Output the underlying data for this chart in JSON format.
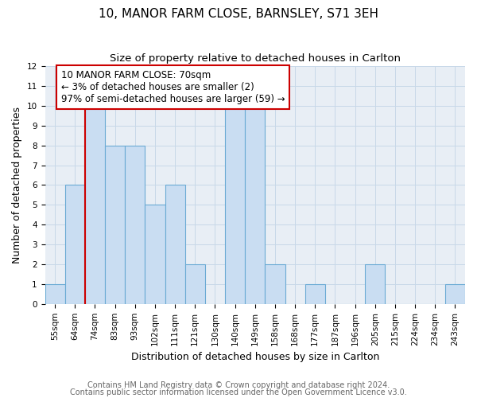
{
  "title": "10, MANOR FARM CLOSE, BARNSLEY, S71 3EH",
  "subtitle": "Size of property relative to detached houses in Carlton",
  "xlabel": "Distribution of detached houses by size in Carlton",
  "ylabel": "Number of detached properties",
  "categories": [
    "55sqm",
    "64sqm",
    "74sqm",
    "83sqm",
    "93sqm",
    "102sqm",
    "111sqm",
    "121sqm",
    "130sqm",
    "140sqm",
    "149sqm",
    "158sqm",
    "168sqm",
    "177sqm",
    "187sqm",
    "196sqm",
    "205sqm",
    "215sqm",
    "224sqm",
    "234sqm",
    "243sqm"
  ],
  "values": [
    1,
    6,
    10,
    8,
    8,
    5,
    6,
    2,
    0,
    10,
    10,
    2,
    0,
    1,
    0,
    0,
    2,
    0,
    0,
    0,
    1
  ],
  "bar_color": "#c9ddf2",
  "bar_edge_color": "#6aaad4",
  "subject_line_index": 2,
  "subject_line_color": "#cc0000",
  "annotation_box_text": "10 MANOR FARM CLOSE: 70sqm\n← 3% of detached houses are smaller (2)\n97% of semi-detached houses are larger (59) →",
  "annotation_box_color": "#cc0000",
  "annotation_box_fill": "#ffffff",
  "ylim": [
    0,
    12
  ],
  "yticks": [
    0,
    1,
    2,
    3,
    4,
    5,
    6,
    7,
    8,
    9,
    10,
    11,
    12
  ],
  "grid_color": "#c8d8e8",
  "background_color": "#e8eef5",
  "footer_line1": "Contains HM Land Registry data © Crown copyright and database right 2024.",
  "footer_line2": "Contains public sector information licensed under the Open Government Licence v3.0.",
  "title_fontsize": 11,
  "subtitle_fontsize": 9.5,
  "axis_label_fontsize": 9,
  "tick_fontsize": 7.5,
  "annotation_fontsize": 8.5,
  "footer_fontsize": 7
}
